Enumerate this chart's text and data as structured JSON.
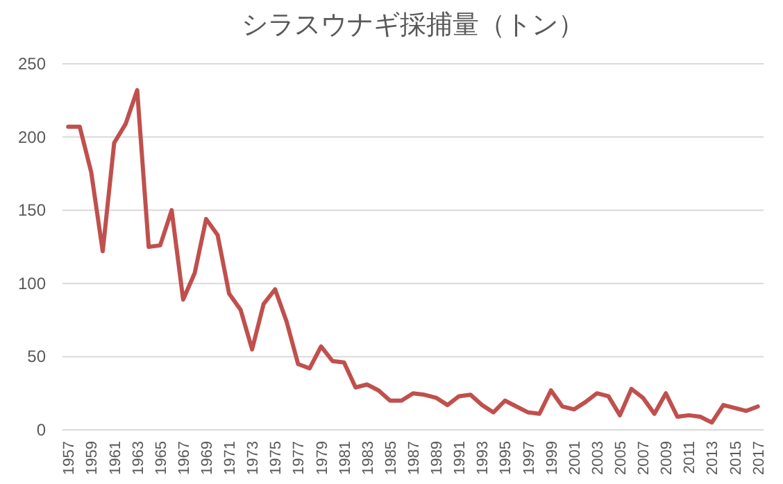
{
  "chart_data": {
    "type": "line",
    "title": "シラスウナギ採捕量（トン）",
    "categories": [
      "1957",
      null,
      "1959",
      null,
      "1961",
      null,
      "1963",
      null,
      "1965",
      null,
      "1967",
      null,
      "1969",
      null,
      "1971",
      null,
      "1973",
      null,
      "1975",
      null,
      "1977",
      null,
      "1979",
      null,
      "1981",
      null,
      "1983",
      null,
      "1985",
      null,
      "1987",
      null,
      "1989",
      null,
      "1991",
      null,
      "1993",
      null,
      "1995",
      null,
      "1997",
      null,
      "1999",
      null,
      "2001",
      null,
      "2003",
      null,
      "2005",
      null,
      "2007",
      null,
      "2009",
      null,
      "2011",
      null,
      "2013",
      null,
      "2015",
      null,
      "2017"
    ],
    "series": [
      {
        "color": "#c0504d",
        "values": [
          207,
          207,
          176,
          122,
          196,
          209,
          232,
          125,
          126,
          150,
          89,
          107,
          144,
          133,
          93,
          82,
          55,
          86,
          96,
          74,
          45,
          42,
          57,
          47,
          46,
          29,
          31,
          27,
          20,
          20,
          25,
          24,
          22,
          17,
          23,
          24,
          17,
          12,
          20,
          16,
          12,
          11,
          27,
          16,
          14,
          19,
          25,
          23,
          10,
          28,
          22,
          11,
          25,
          9,
          10,
          9,
          5,
          17,
          15,
          13,
          16
        ]
      }
    ],
    "ylim": [
      0,
      250
    ],
    "yticks": [
      0,
      50,
      100,
      150,
      200,
      250
    ],
    "grid": "y",
    "marker": "none",
    "line_style": "solid"
  }
}
